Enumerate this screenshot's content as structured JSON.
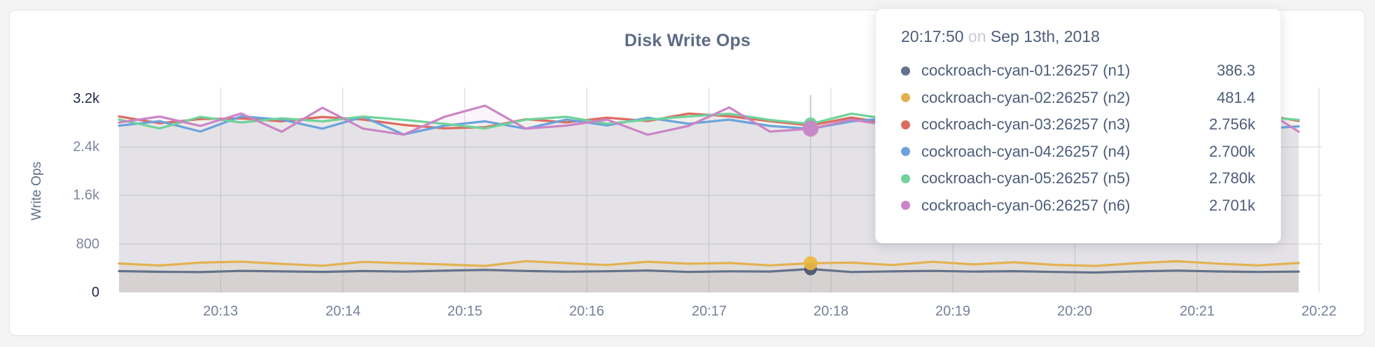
{
  "panel": {
    "background": "#ffffff"
  },
  "chart_data": {
    "type": "line",
    "title": "Disk Write Ops",
    "xlabel": "",
    "ylabel": "Write Ops",
    "ylim": [
      0,
      3400
    ],
    "grid": true,
    "legend_position": "tooltip",
    "x": [
      "20:12:10",
      "20:12:30",
      "20:12:50",
      "20:13:10",
      "20:13:30",
      "20:13:50",
      "20:14:10",
      "20:14:30",
      "20:14:50",
      "20:15:10",
      "20:15:30",
      "20:15:50",
      "20:16:10",
      "20:16:30",
      "20:16:50",
      "20:17:10",
      "20:17:30",
      "20:17:50",
      "20:18:10",
      "20:18:30",
      "20:18:50",
      "20:19:10",
      "20:19:30",
      "20:19:50",
      "20:20:10",
      "20:20:30",
      "20:20:50",
      "20:21:10",
      "20:21:30",
      "20:21:50"
    ],
    "xticks": [
      "20:13",
      "20:14",
      "20:15",
      "20:16",
      "20:17",
      "20:18",
      "20:19",
      "20:20",
      "20:21",
      "20:22"
    ],
    "yticks": [
      {
        "label": "3.2k",
        "value": 3200,
        "emphasis": true,
        "grid": false
      },
      {
        "label": "2.4k",
        "value": 2400,
        "emphasis": false,
        "grid": true
      },
      {
        "label": "1.6k",
        "value": 1600,
        "emphasis": false,
        "grid": true
      },
      {
        "label": "800",
        "value": 800,
        "emphasis": false,
        "grid": true
      },
      {
        "label": "0",
        "value": 0,
        "emphasis": true,
        "grid": false
      }
    ],
    "hover": {
      "time": "20:17:50"
    },
    "series": [
      {
        "name": "cockroach-cyan-01:26257 (n1)",
        "color": "#64718a",
        "dot": "#47536b",
        "fill": "rgba(91,108,135,0.10)",
        "values": [
          352,
          341,
          336,
          356,
          348,
          339,
          353,
          344,
          359,
          372,
          354,
          343,
          350,
          361,
          338,
          349,
          345,
          386.3,
          337,
          348,
          356,
          344,
          351,
          338,
          329,
          347,
          360,
          346,
          338,
          344
        ]
      },
      {
        "name": "cockroach-cyan-02:26257 (n2)",
        "color": "#e2b251",
        "dot": "#ecb73e",
        "fill": "rgba(226,178,81,0.10)",
        "values": [
          478,
          445,
          492,
          508,
          471,
          441,
          504,
          483,
          462,
          437,
          516,
          484,
          453,
          507,
          475,
          486,
          447,
          481.4,
          493,
          452,
          506,
          463,
          497,
          455,
          438,
          482,
          515,
          476,
          446,
          486
        ]
      },
      {
        "name": "cockroach-cyan-03:26257 (n3)",
        "color": "#dd6a5f",
        "dot": "#dd6a5f",
        "fill": "rgba(221,106,95,0.08)",
        "values": [
          2905,
          2793,
          2861,
          2872,
          2824,
          2896,
          2852,
          2764,
          2708,
          2727,
          2858,
          2806,
          2884,
          2828,
          2952,
          2908,
          2826,
          2756,
          2886,
          2784,
          2856,
          2822,
          2766,
          2852,
          2786,
          2904,
          2824,
          2756,
          2948,
          2830
        ]
      },
      {
        "name": "cockroach-cyan-04:26257 (n4)",
        "color": "#6aa3dc",
        "dot": "#6aa3dc",
        "fill": "rgba(106,163,220,0.08)",
        "values": [
          2752,
          2826,
          2655,
          2904,
          2851,
          2703,
          2898,
          2607,
          2753,
          2824,
          2702,
          2853,
          2756,
          2882,
          2784,
          2851,
          2748,
          2700,
          2823,
          2879,
          2706,
          2752,
          2821,
          2653,
          2782,
          2704,
          2849,
          2781,
          2698,
          2741
        ]
      },
      {
        "name": "cockroach-cyan-05:26257 (n5)",
        "color": "#6fd39b",
        "dot": "#6fd39b",
        "fill": "rgba(111,211,155,0.08)",
        "values": [
          2854,
          2706,
          2898,
          2804,
          2873,
          2822,
          2902,
          2848,
          2782,
          2706,
          2853,
          2898,
          2784,
          2851,
          2904,
          2948,
          2846,
          2780,
          2951,
          2853,
          2782,
          2899,
          2824,
          2882,
          2818,
          2764,
          2881,
          2822,
          2903,
          2848
        ]
      },
      {
        "name": "cockroach-cyan-06:26257 (n6)",
        "color": "#cc84c6",
        "dot": "#cc84c6",
        "fill": "rgba(204,132,198,0.08)",
        "values": [
          2804,
          2902,
          2748,
          2952,
          2652,
          3048,
          2704,
          2604,
          2898,
          3082,
          2702,
          2753,
          2851,
          2602,
          2748,
          3052,
          2654,
          2701,
          2853,
          2748,
          2902,
          2652,
          2804,
          2751,
          2948,
          2702,
          2852,
          2748,
          3078,
          2653
        ]
      }
    ]
  },
  "tooltip": {
    "time": "20:17:50",
    "separator": "on",
    "date": "Sep 13th, 2018",
    "rows": [
      {
        "label": "cockroach-cyan-01:26257 (n1)",
        "value": "386.3"
      },
      {
        "label": "cockroach-cyan-02:26257 (n2)",
        "value": "481.4"
      },
      {
        "label": "cockroach-cyan-03:26257 (n3)",
        "value": "2.756k"
      },
      {
        "label": "cockroach-cyan-04:26257 (n4)",
        "value": "2.700k"
      },
      {
        "label": "cockroach-cyan-05:26257 (n5)",
        "value": "2.780k"
      },
      {
        "label": "cockroach-cyan-06:26257 (n6)",
        "value": "2.701k"
      }
    ]
  }
}
